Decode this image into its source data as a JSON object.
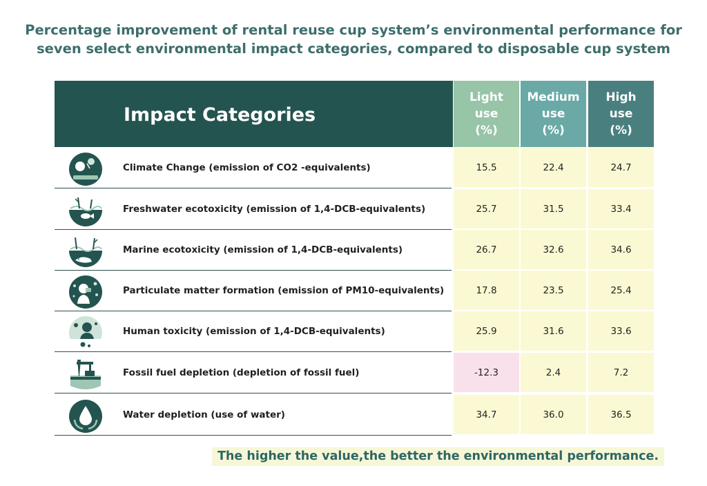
{
  "title_lines": [
    "Percentage improvement of rental reuse cup system’s environmental performance for",
    "seven select environmental impact categories, compared to disposable cup system"
  ],
  "header": {
    "category": "Impact Categories",
    "columns": [
      {
        "lines": [
          "Light",
          "use",
          "(%)"
        ]
      },
      {
        "lines": [
          "Medium",
          "use",
          "(%)"
        ]
      },
      {
        "lines": [
          "High",
          "use",
          "(%)"
        ]
      }
    ]
  },
  "rows": [
    {
      "label": "Climate Change  (emission of CO2 -equivalents)",
      "icon": "climate-change-icon",
      "light": "15.5",
      "medium": "22.4",
      "high": "24.7"
    },
    {
      "label": "Freshwater ecotoxicity (emission of 1,4-DCB-equivalents)",
      "icon": "freshwater-ecotoxicity-icon",
      "light": "25.7",
      "medium": "31.5",
      "high": "33.4"
    },
    {
      "label": "Marine ecotoxicity (emission of 1,4-DCB-equivalents)",
      "icon": "marine-ecotoxicity-icon",
      "light": "26.7",
      "medium": "32.6",
      "high": "34.6"
    },
    {
      "label": "Particulate matter formation (emission of PM10-equivalents)",
      "icon": "particulate-matter-icon",
      "light": "17.8",
      "medium": "23.5",
      "high": "25.4"
    },
    {
      "label": "Human toxicity (emission of 1,4-DCB-equivalents)",
      "icon": "human-toxicity-icon",
      "light": "25.9",
      "medium": "31.6",
      "high": "33.6"
    },
    {
      "label": "Fossil fuel depletion (depletion of fossil fuel)",
      "icon": "fossil-fuel-icon",
      "light": "-12.3",
      "medium": "2.4",
      "high": "7.2"
    },
    {
      "label": "Water depletion (use of water)",
      "icon": "water-drop-icon",
      "light": "34.7",
      "medium": "36.0",
      "high": "36.5"
    }
  ],
  "footnote": "The higher the value,the better the environmental performance.",
  "colors": {
    "header_dark": "#245450",
    "light_col": "#98c4a8",
    "medium_col": "#6aa9a6",
    "high_col": "#4a7f80",
    "cell_bg": "#fbf9d3",
    "negative_bg": "#f9e1ec",
    "title": "#3d6e6c"
  },
  "chart_data": {
    "type": "table",
    "columns": [
      "Impact Categories",
      "Light use (%)",
      "Medium use (%)",
      "High use (%)"
    ],
    "rows": [
      [
        "Climate Change  (emission of CO2 -equivalents)",
        15.5,
        22.4,
        24.7
      ],
      [
        "Freshwater ecotoxicity (emission of 1,4-DCB-equivalents)",
        25.7,
        31.5,
        33.4
      ],
      [
        "Marine ecotoxicity (emission of 1,4-DCB-equivalents)",
        26.7,
        32.6,
        34.6
      ],
      [
        "Particulate matter formation (emission of PM10-equivalents)",
        17.8,
        23.5,
        25.4
      ],
      [
        "Human toxicity (emission of 1,4-DCB-equivalents)",
        25.9,
        31.6,
        33.6
      ],
      [
        "Fossil fuel depletion (depletion of fossil fuel)",
        -12.3,
        2.4,
        7.2
      ],
      [
        "Water depletion (use of water)",
        34.7,
        36.0,
        36.5
      ]
    ]
  }
}
